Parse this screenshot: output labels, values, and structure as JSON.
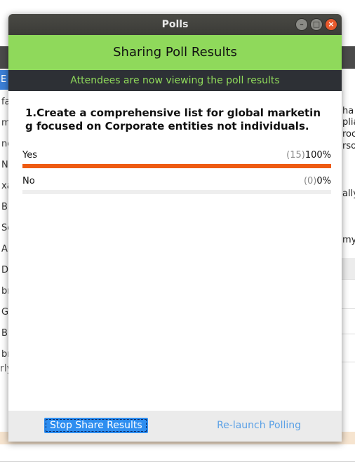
{
  "background": {
    "left_active": "E",
    "left_items": [
      "fa",
      "m",
      "ne",
      "N",
      "xa",
      "B",
      "Se",
      "A",
      "D",
      "br",
      "G",
      "B",
      "br"
    ],
    "left_tail": "rly",
    "right_texts": [
      "ha",
      "plia",
      "roc",
      "rso",
      "ally",
      "my"
    ]
  },
  "dialog": {
    "title": "Polls",
    "window_buttons": {
      "minimize": "–",
      "maximize": "□",
      "close": "×"
    },
    "header": "Sharing Poll Results",
    "subheader": "Attendees are now viewing the poll results",
    "question": "1.Create a comprehensive list for global marketing focused on Corporate entities not individuals.",
    "answers": [
      {
        "label": "Yes",
        "count": "(15)",
        "percent": "100%",
        "fraction": 1.0
      },
      {
        "label": "No",
        "count": "(0)",
        "percent": "0%",
        "fraction": 0.0
      }
    ],
    "footer": {
      "stop_label": "Stop Share Results",
      "relaunch_label": "Re-launch Polling"
    },
    "colors": {
      "accent_green": "#8fd95b",
      "bar_fill": "#ee5b12",
      "button_blue": "#2e8ef0",
      "link_blue": "#5aa0e6"
    }
  }
}
